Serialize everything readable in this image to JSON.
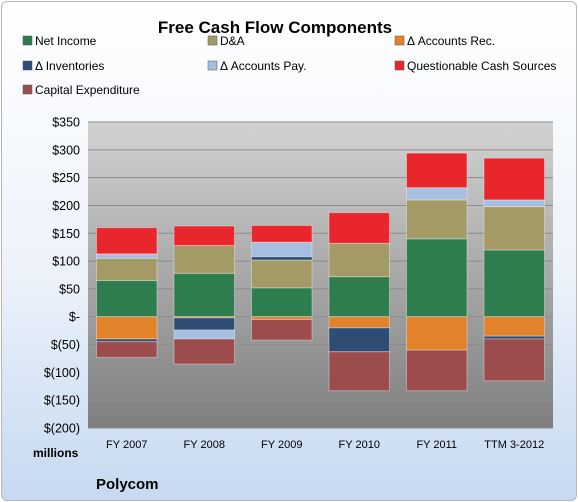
{
  "chart_data": {
    "type": "bar",
    "stacked": true,
    "title": "Free Cash Flow Components",
    "units_label": "millions",
    "company": "Polycom",
    "categories": [
      "FY 2007",
      "FY 2008",
      "FY 2009",
      "FY 2010",
      "FY 2011",
      "TTM 3-2012"
    ],
    "ylim": [
      -200,
      350
    ],
    "yticks": [
      350,
      300,
      250,
      200,
      150,
      100,
      50,
      0,
      -50,
      -100,
      -150,
      -200
    ],
    "ytick_labels": [
      "$350",
      "$300",
      "$250",
      "$200",
      "$150",
      "$100",
      "$50",
      "$-",
      "$(50)",
      "$(100)",
      "$(150)",
      "$(200)"
    ],
    "grid": true,
    "legend_position": "top",
    "series": [
      {
        "name": "Net Income",
        "color": "#2e7d4f",
        "values": [
          65,
          78,
          52,
          72,
          140,
          120
        ]
      },
      {
        "name": "D&A",
        "color": "#a39a66",
        "values": [
          40,
          50,
          50,
          60,
          70,
          78
        ]
      },
      {
        "name": "Δ Accounts Rec.",
        "color": "#e2822a",
        "values": [
          -40,
          -2,
          -5,
          -20,
          -60,
          -35
        ]
      },
      {
        "name": "Δ Inventories",
        "color": "#2f4d74",
        "values": [
          -5,
          -22,
          6,
          -43,
          0,
          -5
        ]
      },
      {
        "name": "Δ Accounts Pay.",
        "color": "#a6bfe0",
        "values": [
          8,
          -16,
          26,
          0,
          22,
          12
        ]
      },
      {
        "name": "Questionable Cash Sources",
        "color": "#e8262b",
        "values": [
          47,
          35,
          30,
          55,
          62,
          75
        ]
      },
      {
        "name": "Capital Expenditure",
        "color": "#9c4c4c",
        "values": [
          -28,
          -45,
          -37,
          -70,
          -73,
          -75
        ]
      }
    ]
  }
}
